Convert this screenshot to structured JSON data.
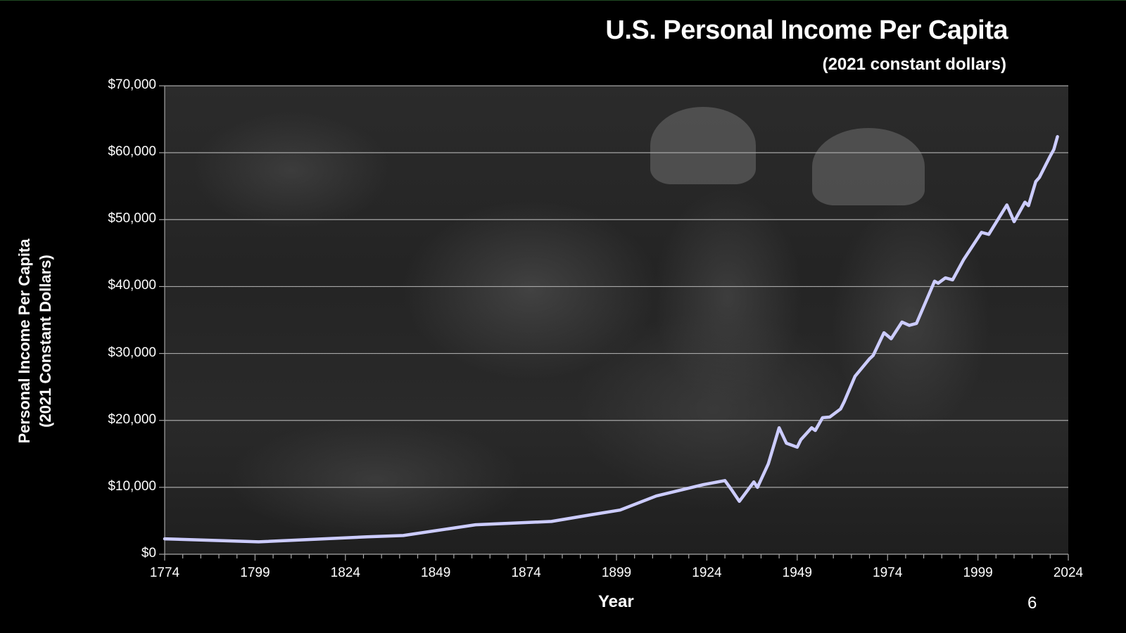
{
  "slide": {
    "title": "U.S. Personal Income Per Capita",
    "subtitle": "(2021 constant dollars)",
    "page_number": "6",
    "background": "darkened black-and-white wartime factory photo (two women workers in helmets, one helmet reading TODD)",
    "colors": {
      "background": "#000000",
      "line": "#ccccff",
      "gridline": "#a6a6a6",
      "text": "#ffffff",
      "top_rule": "#1f4a22"
    }
  },
  "axes": {
    "ylabel_line1": "Personal Income Per Capita",
    "ylabel_line2": "(2021 Constant Dollars)",
    "xlabel": "Year",
    "yticks": [
      "$0",
      "$10,000",
      "$20,000",
      "$30,000",
      "$40,000",
      "$50,000",
      "$60,000",
      "$70,000"
    ],
    "xticks": [
      "1774",
      "1799",
      "1824",
      "1849",
      "1874",
      "1899",
      "1924",
      "1949",
      "1974",
      "1999",
      "2024"
    ]
  },
  "chart_data": {
    "type": "line",
    "title": "U.S. Personal Income Per Capita",
    "subtitle": "(2021 constant dollars)",
    "xlabel": "Year",
    "ylabel": "Personal Income Per Capita (2021 Constant Dollars)",
    "xlim": [
      1774,
      2024
    ],
    "ylim": [
      0,
      70000
    ],
    "grid": "horizontal",
    "legend": "none",
    "series": [
      {
        "name": "Personal Income Per Capita",
        "color": "#ccccff",
        "x": [
          1774,
          1800,
          1830,
          1840,
          1860,
          1881,
          1892,
          1900,
          1910,
          1923,
          1929,
          1931,
          1933,
          1937,
          1938,
          1941,
          1944,
          1946,
          1949,
          1950,
          1953,
          1954,
          1956,
          1958,
          1961,
          1962,
          1965,
          1969,
          1970,
          1973,
          1975,
          1978,
          1980,
          1982,
          1987,
          1988,
          1990,
          1992,
          1995,
          2000,
          2002,
          2007,
          2009,
          2012,
          2013,
          2015,
          2016,
          2019,
          2020,
          2021
        ],
        "values": [
          2300,
          1850,
          2600,
          2800,
          4400,
          4900,
          5900,
          6600,
          8700,
          10400,
          11000,
          9500,
          7900,
          10800,
          10000,
          13500,
          18900,
          16600,
          16000,
          17100,
          18900,
          18500,
          20400,
          20500,
          21700,
          22800,
          26600,
          29200,
          29700,
          33100,
          32200,
          34700,
          34200,
          34500,
          40800,
          40500,
          41300,
          41000,
          44000,
          48100,
          47800,
          52200,
          49700,
          52600,
          52100,
          55700,
          56300,
          59500,
          60500,
          62400
        ]
      }
    ]
  }
}
